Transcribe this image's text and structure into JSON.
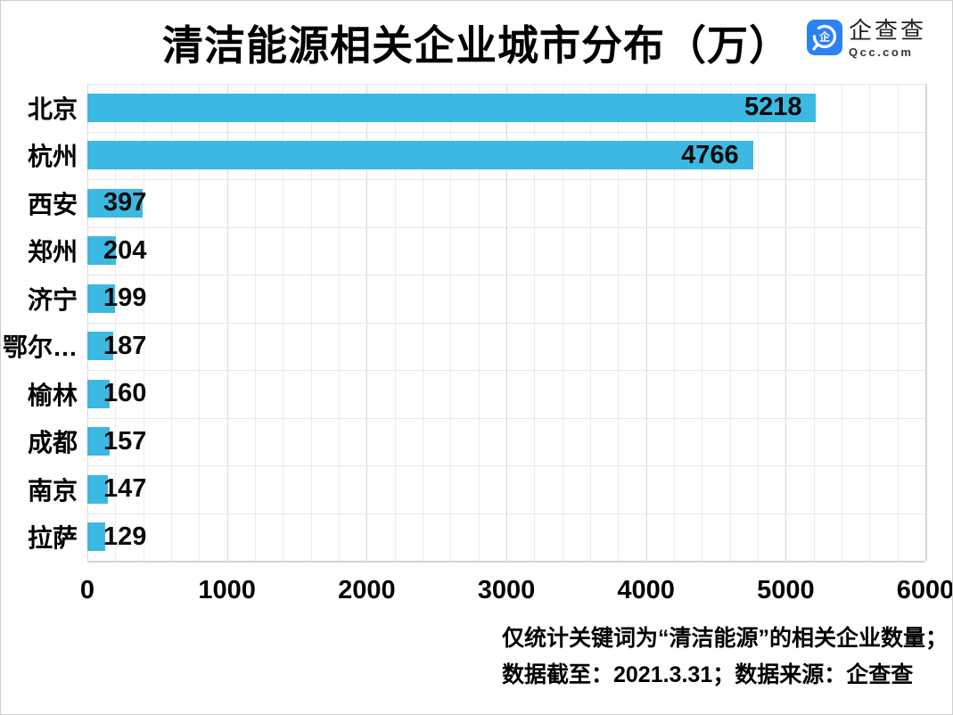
{
  "title": "清洁能源相关企业城市分布（万）",
  "logo": {
    "name": "企查查",
    "domain": "Qcc.com",
    "glyph": "企",
    "tile_color": "#2B82F2"
  },
  "footnote": {
    "line1": "仅统计关键词为“清洁能源”的相关企业数量；",
    "line2": "数据截至：2021.3.31；数据来源：企查查"
  },
  "chart_data": {
    "type": "bar",
    "orientation": "horizontal",
    "title": "清洁能源相关企业城市分布（万）",
    "categories": [
      "北京",
      "杭州",
      "西安",
      "郑州",
      "济宁",
      "鄂尔…",
      "榆林",
      "成都",
      "南京",
      "拉萨"
    ],
    "values": [
      5218,
      4766,
      397,
      204,
      199,
      187,
      160,
      157,
      147,
      129
    ],
    "xlabel": "",
    "ylabel": "",
    "xlim": [
      0,
      6000
    ],
    "x_ticks": [
      0,
      1000,
      2000,
      3000,
      4000,
      5000,
      6000
    ],
    "minor_grid_step": 200,
    "grid": true,
    "legend": "none",
    "bar_color": "#3CB9E3",
    "value_label_color": "#0a0a0a",
    "value_label_position": "at-bar-end"
  }
}
